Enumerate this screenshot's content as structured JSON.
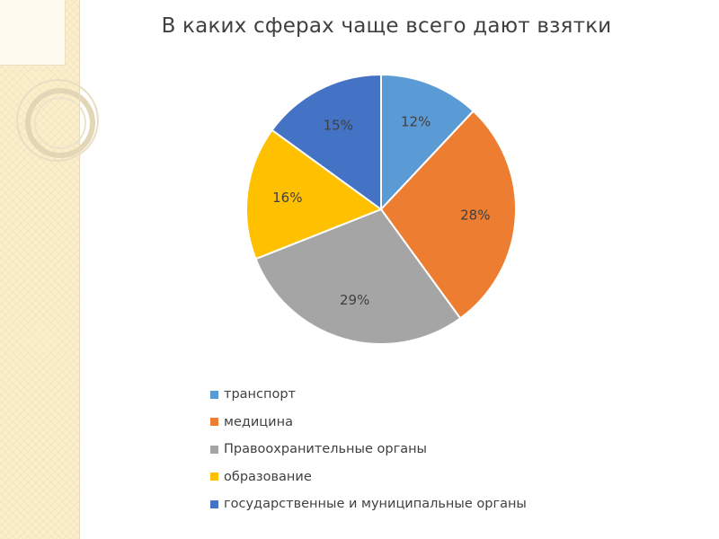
{
  "chart_data": {
    "type": "pie",
    "title": "В каких сферах чаще всего дают взятки",
    "categories": [
      "транспорт",
      "медицина",
      "Правоохранительные органы",
      "образование",
      "государственные и муниципальные органы"
    ],
    "values": [
      12,
      28,
      29,
      16,
      15
    ],
    "value_labels": [
      "12%",
      "28%",
      "29%",
      "16%",
      "15%"
    ],
    "colors": [
      "#5b9bd5",
      "#ed7d31",
      "#a5a5a5",
      "#ffc000",
      "#4472c4"
    ],
    "legend_position": "bottom"
  }
}
